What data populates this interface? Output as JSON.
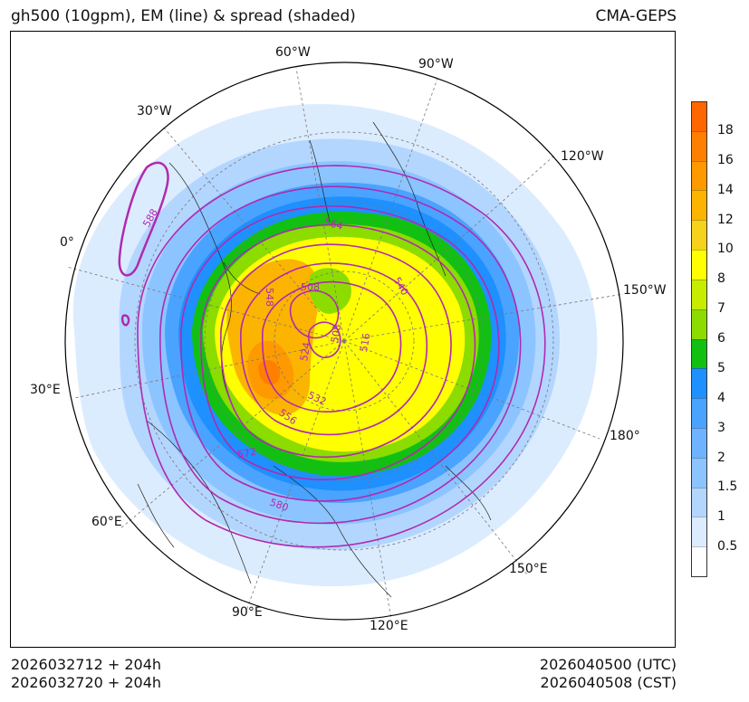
{
  "header": {
    "title": "gh500 (10gpm), EM (line) & spread (shaded)",
    "model": "CMA-GEPS"
  },
  "footer": {
    "init_utc": "2026032712 + 204h",
    "init_cst": "2026032720 + 204h",
    "valid_utc": "2026040500 (UTC)",
    "valid_cst": "2026040508 (CST)"
  },
  "map": {
    "longitude_labels": [
      "60°W",
      "90°W",
      "30°W",
      "120°W",
      "0°",
      "150°W",
      "30°E",
      "180°",
      "60°E",
      "150°E",
      "90°E",
      "120°E"
    ],
    "contour_labels": [
      "588",
      "564",
      "548",
      "508",
      "540",
      "508",
      "524",
      "516",
      "532",
      "556",
      "572",
      "580"
    ],
    "colors": {
      "contour": "#b02ab0",
      "coastline": "#222222",
      "grid": "#777777"
    }
  },
  "colorbar": {
    "ticks": [
      "0.5",
      "1",
      "1.5",
      "2",
      "3",
      "4",
      "5",
      "6",
      "7",
      "8",
      "10",
      "12",
      "14",
      "16",
      "18"
    ],
    "colors_top_to_bottom": [
      "#ff6600",
      "#ff7f00",
      "#ff9900",
      "#fbb400",
      "#f7d21a",
      "#ffff00",
      "#c8ec00",
      "#8cdc00",
      "#12c012",
      "#1e90ff",
      "#4aa3ff",
      "#6db3ff",
      "#8cc4ff",
      "#b3d6ff",
      "#dcecff",
      "#ffffff"
    ]
  }
}
